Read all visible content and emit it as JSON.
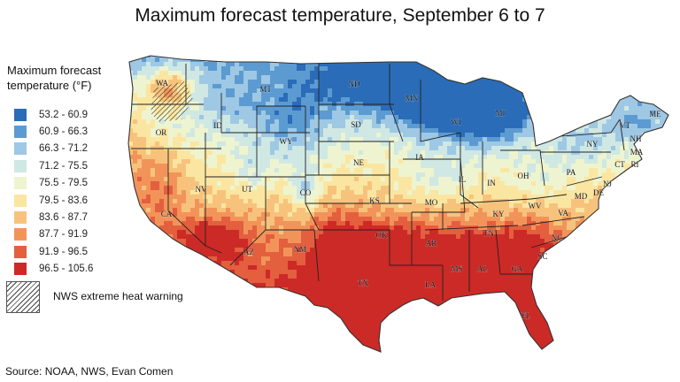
{
  "title": "Maximum forecast temperature, September 6 to 7",
  "legend": {
    "title_line1": "Maximum forecast",
    "title_line2": "temperature (°F)",
    "items": [
      {
        "range": "53.2 - 60.9",
        "color": "#2b6cb8"
      },
      {
        "range": "60.9 - 66.3",
        "color": "#5c9bd1"
      },
      {
        "range": "66.3 - 71.2",
        "color": "#9ec8e4"
      },
      {
        "range": "71.2 - 75.5",
        "color": "#cfe8e3"
      },
      {
        "range": "75.5 - 79.5",
        "color": "#eef4cf"
      },
      {
        "range": "79.5 - 83.6",
        "color": "#fbe6a1"
      },
      {
        "range": "83.6 - 87.7",
        "color": "#f7c37c"
      },
      {
        "range": "87.7 - 91.9",
        "color": "#f2945a"
      },
      {
        "range": "91.9 - 96.5",
        "color": "#e35f3e"
      },
      {
        "range": "96.5 - 105.6",
        "color": "#cc2a26"
      }
    ]
  },
  "heat_warning_label": "NWS extreme heat warning",
  "source": "Source: NOAA, NWS, Evan Comen",
  "state_labels": {
    "WA": "WA",
    "OR": "OR",
    "CA": "CA",
    "ID": "ID",
    "NV": "NV",
    "MT": "MT",
    "WY": "WY",
    "UT": "UT",
    "AZ": "AZ",
    "CO": "CO",
    "NM": "NM",
    "ND": "ND",
    "SD": "SD",
    "NE": "NE",
    "KS": "KS",
    "OK": "OK",
    "TX": "TX",
    "MN": "MN",
    "IA": "IA",
    "MO": "MO",
    "AR": "AR",
    "LA": "LA",
    "WI": "WI",
    "IL": "IL",
    "MI": "MI",
    "IN": "IN",
    "OH": "OH",
    "KY": "KY",
    "TN": "TN",
    "MS": "MS",
    "AL": "AL",
    "GA": "GA",
    "FL": "FL",
    "SC": "SC",
    "NC": "NC",
    "VA": "VA",
    "WV": "WV",
    "MD": "MD",
    "DE": "DE",
    "NJ": "NJ",
    "PA": "PA",
    "NY": "NY",
    "CT": "CT",
    "RI": "RI",
    "MA": "MA",
    "VT": "VT",
    "NH": "NH",
    "ME": "ME"
  }
}
